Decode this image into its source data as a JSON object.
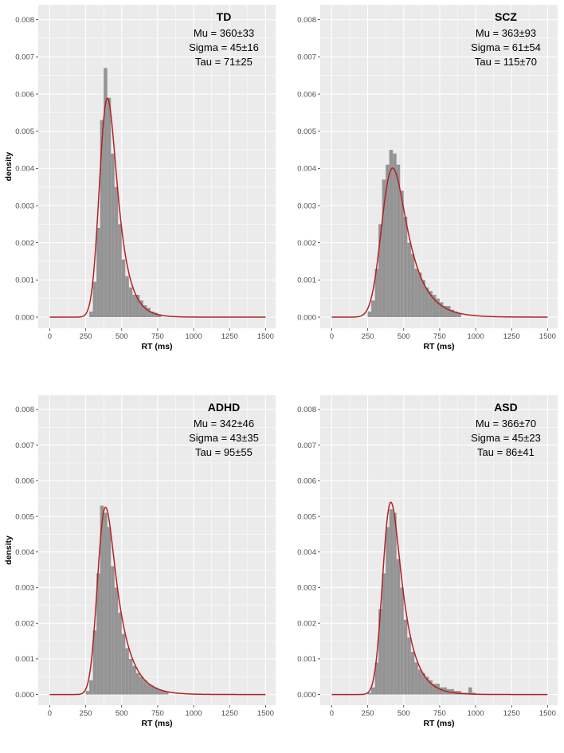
{
  "chart_data": [
    {
      "type": "bar",
      "title": "TD",
      "annotations": [
        "Mu = 360±33",
        "Sigma = 45±16",
        "Tau = 71±25"
      ],
      "xlabel": "RT (ms)",
      "ylabel": "density",
      "xlim": [
        -80,
        1570
      ],
      "ylim": [
        -0.0003,
        0.0084
      ],
      "xticks": [
        0,
        250,
        500,
        750,
        1000,
        1250,
        1500
      ],
      "xtick_labels": [
        "0",
        "250",
        "500",
        "750",
        "1000",
        "1250",
        "1500"
      ],
      "yticks": [
        0,
        0.001,
        0.002,
        0.003,
        0.004,
        0.005,
        0.006,
        0.007,
        0.008
      ],
      "ytick_labels": [
        "0.000",
        "0.001",
        "0.002",
        "0.003",
        "0.004",
        "0.005",
        "0.006",
        "0.007",
        "0.008"
      ],
      "bin_width": 25,
      "bin_starts": [
        275,
        300,
        325,
        350,
        375,
        400,
        425,
        450,
        475,
        500,
        525,
        550,
        575,
        600,
        625,
        650,
        675,
        700,
        725,
        750
      ],
      "values": [
        0.00015,
        0.00095,
        0.0024,
        0.0053,
        0.0067,
        0.0059,
        0.0044,
        0.0035,
        0.0025,
        0.00155,
        0.0011,
        0.0008,
        0.0006,
        0.0006,
        0.00045,
        0.00032,
        0.00025,
        0.00015,
        0.00012,
        8e-05
      ],
      "fit_curve": {
        "type": "ex-gaussian",
        "mu": 360,
        "sigma": 45,
        "tau": 71,
        "color": "#b22222"
      },
      "grid": true
    },
    {
      "type": "bar",
      "title": "SCZ",
      "annotations": [
        "Mu = 363±93",
        "Sigma = 61±54",
        "Tau = 115±70"
      ],
      "xlabel": "RT (ms)",
      "ylabel": "",
      "xlim": [
        -80,
        1570
      ],
      "ylim": [
        -0.0003,
        0.0084
      ],
      "xticks": [
        0,
        250,
        500,
        750,
        1000,
        1250,
        1500
      ],
      "xtick_labels": [
        "0",
        "250",
        "500",
        "750",
        "1000",
        "1250",
        "1500"
      ],
      "yticks": [
        0,
        0.001,
        0.002,
        0.003,
        0.004,
        0.005,
        0.006,
        0.007,
        0.008
      ],
      "ytick_labels": [
        "0.000",
        "0.001",
        "0.002",
        "0.003",
        "0.004",
        "0.005",
        "0.006",
        "0.007",
        "0.008"
      ],
      "bin_width": 25,
      "bin_starts": [
        250,
        275,
        300,
        325,
        350,
        375,
        400,
        425,
        450,
        475,
        500,
        525,
        550,
        575,
        600,
        625,
        650,
        675,
        700,
        725,
        750,
        775,
        800,
        825,
        850,
        875
      ],
      "values": [
        0.00015,
        0.00045,
        0.0013,
        0.0025,
        0.0037,
        0.0041,
        0.0045,
        0.0044,
        0.0041,
        0.0034,
        0.0027,
        0.002,
        0.0017,
        0.0013,
        0.0012,
        0.001,
        0.0008,
        0.0007,
        0.0006,
        0.0005,
        0.0004,
        0.0003,
        0.0003,
        0.0002,
        0.00015,
        0.0001
      ],
      "fit_curve": {
        "type": "ex-gaussian",
        "mu": 363,
        "sigma": 61,
        "tau": 115,
        "color": "#b22222"
      },
      "grid": true
    },
    {
      "type": "bar",
      "title": "ADHD",
      "annotations": [
        "Mu = 342±46",
        "Sigma = 43±35",
        "Tau = 95±55"
      ],
      "xlabel": "RT (ms)",
      "ylabel": "density",
      "xlim": [
        -80,
        1570
      ],
      "ylim": [
        -0.0003,
        0.0084
      ],
      "xticks": [
        0,
        250,
        500,
        750,
        1000,
        1250,
        1500
      ],
      "xtick_labels": [
        "0",
        "250",
        "500",
        "750",
        "1000",
        "1250",
        "1500"
      ],
      "yticks": [
        0,
        0.001,
        0.002,
        0.003,
        0.004,
        0.005,
        0.006,
        0.007,
        0.008
      ],
      "ytick_labels": [
        "0.000",
        "0.001",
        "0.002",
        "0.003",
        "0.004",
        "0.005",
        "0.006",
        "0.007",
        "0.008"
      ],
      "bin_width": 25,
      "bin_starts": [
        250,
        275,
        300,
        325,
        350,
        375,
        400,
        425,
        450,
        475,
        500,
        525,
        550,
        575,
        600,
        625,
        650,
        675,
        700,
        725,
        750,
        775,
        800
      ],
      "values": [
        0.0001,
        0.0004,
        0.0018,
        0.0034,
        0.0053,
        0.0051,
        0.0047,
        0.0036,
        0.003,
        0.0023,
        0.0017,
        0.0013,
        0.001,
        0.0008,
        0.0006,
        0.0005,
        0.0004,
        0.0003,
        0.00025,
        0.0002,
        0.00015,
        0.0001,
        8e-05
      ],
      "fit_curve": {
        "type": "ex-gaussian",
        "mu": 342,
        "sigma": 43,
        "tau": 95,
        "color": "#b22222"
      },
      "grid": true
    },
    {
      "type": "bar",
      "title": "ASD",
      "annotations": [
        "Mu = 366±70",
        "Sigma = 45±23",
        "Tau = 86±41"
      ],
      "xlabel": "RT (ms)",
      "ylabel": "",
      "xlim": [
        -80,
        1570
      ],
      "ylim": [
        -0.0003,
        0.0084
      ],
      "xticks": [
        0,
        250,
        500,
        750,
        1000,
        1250,
        1500
      ],
      "xtick_labels": [
        "0",
        "250",
        "500",
        "750",
        "1000",
        "1250",
        "1500"
      ],
      "yticks": [
        0,
        0.001,
        0.002,
        0.003,
        0.004,
        0.005,
        0.006,
        0.007,
        0.008
      ],
      "ytick_labels": [
        "0.000",
        "0.001",
        "0.002",
        "0.003",
        "0.004",
        "0.005",
        "0.006",
        "0.007",
        "0.008"
      ],
      "bin_width": 25,
      "bin_starts": [
        250,
        275,
        300,
        325,
        350,
        375,
        400,
        425,
        450,
        475,
        500,
        525,
        550,
        575,
        600,
        625,
        650,
        675,
        700,
        725,
        750,
        775,
        800,
        825,
        850,
        875,
        900,
        925,
        950,
        975
      ],
      "values": [
        5e-05,
        0.0002,
        0.0009,
        0.0024,
        0.0034,
        0.0047,
        0.0052,
        0.0051,
        0.0038,
        0.003,
        0.0021,
        0.0016,
        0.0012,
        0.0009,
        0.0007,
        0.0006,
        0.0005,
        0.0004,
        0.0003,
        0.0003,
        0.0002,
        0.0002,
        0.00015,
        0.00015,
        0.0001,
        0.0001,
        5e-05,
        5e-05,
        0.0002,
        5e-05
      ],
      "fit_curve": {
        "type": "ex-gaussian",
        "mu": 366,
        "sigma": 45,
        "tau": 86,
        "color": "#b22222"
      },
      "grid": true
    }
  ],
  "colors": {
    "panel_background": "#ebebeb",
    "grid_major": "#ffffff",
    "bar_fill": "#8c8c8c",
    "curve": "#b22222"
  }
}
